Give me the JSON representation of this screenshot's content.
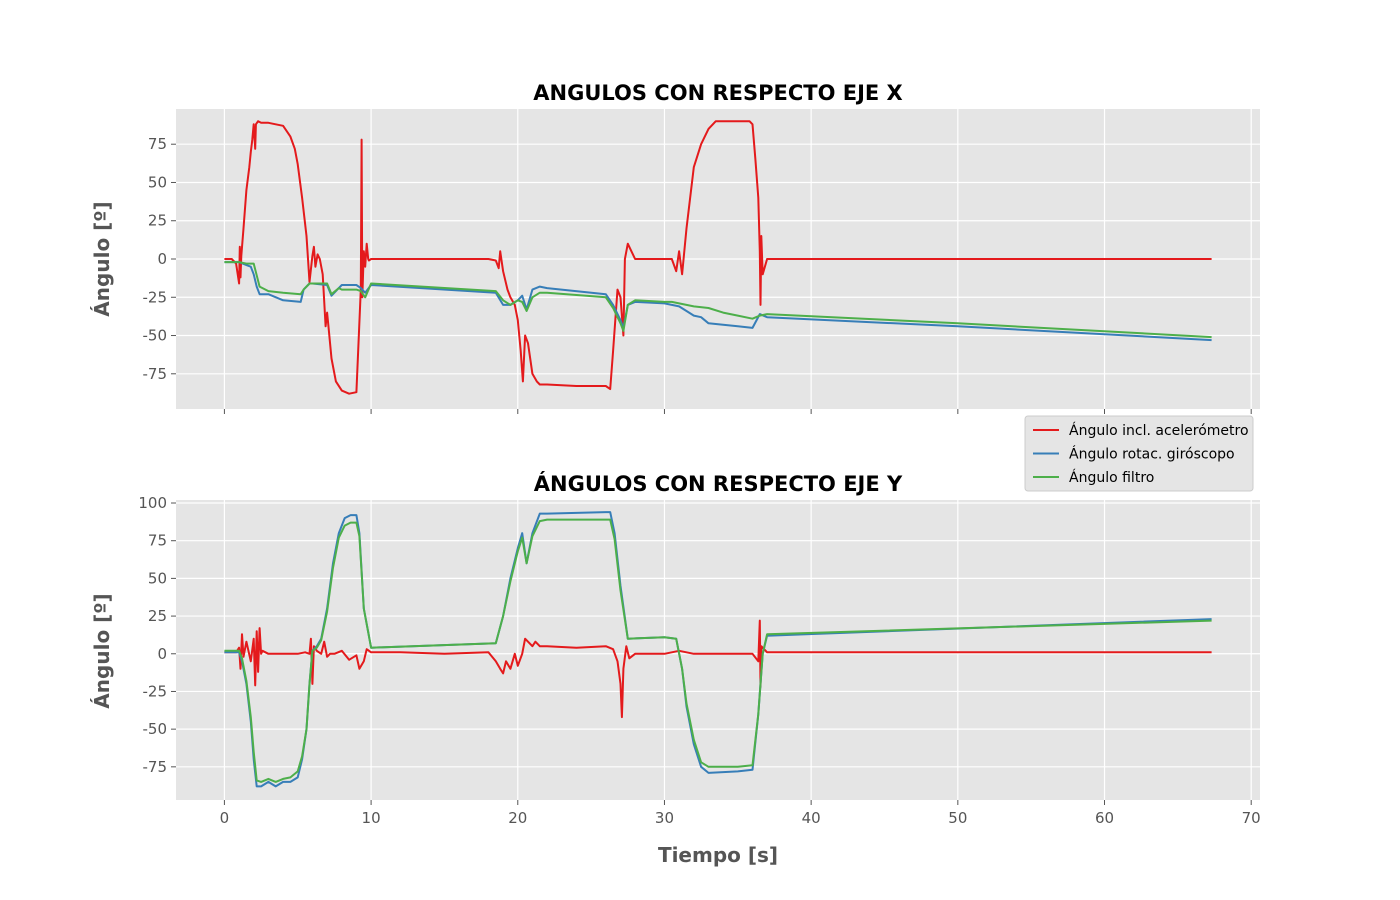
{
  "chart_data": [
    {
      "type": "line",
      "title": "ANGULOS CON RESPECTO EJE X",
      "xlabel": "",
      "ylabel": "Ángulo [º]",
      "xlim": [
        -3.3,
        70.6
      ],
      "ylim": [
        -98,
        98
      ],
      "xticks": [
        0,
        10,
        20,
        30,
        40,
        50,
        60,
        70
      ],
      "yticks": [
        -75,
        -50,
        -25,
        0,
        25,
        50,
        75
      ],
      "show_xtick_labels": false,
      "grid": true,
      "series": [
        {
          "name": "Ángulo incl. acelerómetro",
          "color": "#e41a1c",
          "x": [
            0,
            0.5,
            0.8,
            1.0,
            1.05,
            1.1,
            1.15,
            1.3,
            1.5,
            1.7,
            1.8,
            1.9,
            2.0,
            2.1,
            2.15,
            2.3,
            2.5,
            3.0,
            3.5,
            4.0,
            4.5,
            4.8,
            5.0,
            5.3,
            5.6,
            5.8,
            6.0,
            6.1,
            6.2,
            6.35,
            6.5,
            6.7,
            6.9,
            7.0,
            7.1,
            7.3,
            7.6,
            8.0,
            8.5,
            9.0,
            9.3,
            9.35,
            9.4,
            9.5,
            9.6,
            9.7,
            9.8,
            9.85,
            10.0,
            12.0,
            15.0,
            18.0,
            18.5,
            18.7,
            18.8,
            19.0,
            19.3,
            19.5,
            19.8,
            20.0,
            20.2,
            20.35,
            20.5,
            20.7,
            21.0,
            21.3,
            21.5,
            22.0,
            24.0,
            26.0,
            26.3,
            26.5,
            26.8,
            27.0,
            27.2,
            27.3,
            27.5,
            28.0,
            29.0,
            30.0,
            30.5,
            30.8,
            31.0,
            31.2,
            31.5,
            32.0,
            32.5,
            33.0,
            33.5,
            34.0,
            35.0,
            35.8,
            36.0,
            36.2,
            36.4,
            36.5,
            36.55,
            36.6,
            36.7,
            37.0,
            40.0,
            45.0,
            50.0,
            55.0,
            60.0,
            65.0,
            67.3
          ],
          "values": [
            0,
            0,
            -3,
            -16,
            8,
            -12,
            2,
            20,
            45,
            60,
            70,
            78,
            88,
            72,
            88,
            90,
            89,
            89,
            88,
            87,
            80,
            72,
            62,
            40,
            15,
            -15,
            2,
            8,
            -5,
            3,
            0,
            -10,
            -44,
            -35,
            -45,
            -65,
            -80,
            -86,
            -88,
            -87,
            -20,
            78,
            -25,
            5,
            -5,
            10,
            0,
            -1,
            0,
            0,
            0,
            0,
            -1,
            -6,
            5,
            -8,
            -20,
            -25,
            -30,
            -40,
            -60,
            -80,
            -50,
            -55,
            -75,
            -80,
            -82,
            -82,
            -83,
            -83,
            -85,
            -60,
            -20,
            -25,
            -50,
            0,
            10,
            0,
            0,
            0,
            0,
            -8,
            5,
            -10,
            20,
            60,
            75,
            85,
            90,
            90,
            90,
            90,
            88,
            65,
            40,
            5,
            -30,
            15,
            -10,
            0,
            0,
            0,
            0,
            0,
            0,
            0,
            0
          ]
        },
        {
          "name": "Ángulo rotac. giróscopo",
          "color": "#377eb8",
          "x": [
            0,
            1.0,
            1.5,
            1.8,
            2.0,
            2.2,
            2.4,
            3.0,
            4.0,
            5.2,
            5.4,
            5.8,
            6.0,
            7.0,
            7.3,
            7.8,
            8.0,
            9.0,
            9.3,
            9.6,
            10.0,
            18.5,
            19.0,
            19.5,
            20.0,
            20.3,
            20.6,
            21.0,
            21.5,
            22.0,
            26.0,
            26.5,
            27.0,
            27.2,
            27.5,
            28.0,
            30.0,
            30.5,
            31.0,
            31.5,
            32.0,
            32.5,
            33.0,
            34.0,
            35.0,
            36.0,
            36.5,
            37.0,
            50.0,
            67.3
          ],
          "values": [
            -2,
            -2,
            -4,
            -5,
            -10,
            -18,
            -23,
            -23,
            -27,
            -28,
            -20,
            -16,
            -16,
            -17,
            -24,
            -19,
            -17,
            -17,
            -19,
            -22,
            -17,
            -22,
            -30,
            -30,
            -27,
            -24,
            -33,
            -20,
            -18,
            -19,
            -23,
            -30,
            -40,
            -45,
            -30,
            -28,
            -29,
            -30,
            -31,
            -34,
            -37,
            -38,
            -42,
            -43,
            -44,
            -45,
            -36,
            -38,
            -44,
            -53
          ]
        },
        {
          "name": "Ángulo filtro",
          "color": "#4daf4a",
          "x": [
            0,
            1.0,
            1.5,
            2.0,
            2.4,
            3.0,
            4.0,
            5.2,
            5.4,
            5.8,
            6.0,
            7.0,
            7.3,
            7.8,
            8.0,
            9.0,
            9.3,
            9.6,
            10.0,
            18.5,
            19.0,
            19.5,
            20.0,
            20.3,
            20.6,
            21.0,
            21.5,
            22.0,
            26.0,
            26.5,
            27.0,
            27.2,
            27.5,
            28.0,
            30.0,
            30.5,
            31.0,
            31.5,
            32.0,
            33.0,
            34.0,
            35.0,
            36.0,
            36.5,
            37.0,
            50.0,
            67.3
          ],
          "values": [
            -2,
            -2,
            -3,
            -3,
            -18,
            -21,
            -22,
            -23,
            -20,
            -16,
            -16,
            -16,
            -23,
            -19,
            -20,
            -20,
            -21,
            -25,
            -16,
            -21,
            -27,
            -30,
            -27,
            -28,
            -34,
            -25,
            -22,
            -22,
            -25,
            -32,
            -42,
            -47,
            -30,
            -27,
            -28,
            -28,
            -29,
            -30,
            -31,
            -32,
            -35,
            -37,
            -39,
            -37,
            -36,
            -42,
            -51
          ]
        }
      ]
    },
    {
      "type": "line",
      "title": "ÁNGULOS CON RESPECTO EJE Y",
      "xlabel": "Tiempo [s]",
      "ylabel": "Ángulo [º]",
      "xlim": [
        -3.3,
        70.6
      ],
      "ylim": [
        -97,
        102
      ],
      "xticks": [
        0,
        10,
        20,
        30,
        40,
        50,
        60,
        70
      ],
      "yticks": [
        -75,
        -50,
        -25,
        0,
        25,
        50,
        75,
        100
      ],
      "show_xtick_labels": true,
      "grid": true,
      "legend": "top-right",
      "series": [
        {
          "name": "Ángulo incl. acelerómetro",
          "color": "#e41a1c",
          "x": [
            0,
            0.8,
            1.0,
            1.1,
            1.2,
            1.3,
            1.5,
            1.8,
            2.0,
            2.1,
            2.2,
            2.3,
            2.4,
            2.5,
            2.6,
            3.0,
            4.0,
            5.0,
            5.5,
            5.8,
            5.9,
            6.0,
            6.1,
            6.3,
            6.6,
            6.8,
            7.0,
            7.2,
            7.5,
            8.0,
            8.5,
            9.0,
            9.2,
            9.5,
            9.7,
            10.0,
            12.0,
            15.0,
            18.0,
            18.5,
            18.8,
            19.0,
            19.2,
            19.5,
            19.8,
            20.0,
            20.3,
            20.5,
            21.0,
            21.2,
            21.5,
            22.0,
            24.0,
            26.0,
            26.5,
            26.8,
            27.0,
            27.1,
            27.2,
            27.4,
            27.6,
            28.0,
            30.0,
            31.0,
            32.0,
            35.0,
            36.0,
            36.4,
            36.5,
            36.55,
            36.6,
            37.0,
            40.0,
            50.0,
            60.0,
            67.3
          ],
          "values": [
            1,
            1,
            4,
            -10,
            13,
            -2,
            8,
            -5,
            10,
            -21,
            15,
            -12,
            17,
            0,
            2,
            0,
            0,
            0,
            1,
            0,
            10,
            -20,
            5,
            2,
            0,
            8,
            -2,
            0,
            0,
            2,
            -4,
            -1,
            -10,
            -5,
            3,
            1,
            1,
            0,
            1,
            -5,
            -10,
            -13,
            -5,
            -10,
            0,
            -8,
            0,
            10,
            5,
            8,
            5,
            5,
            4,
            5,
            3,
            -5,
            -20,
            -42,
            -10,
            5,
            -3,
            0,
            0,
            2,
            0,
            0,
            0,
            -5,
            22,
            -22,
            5,
            1,
            1,
            1,
            1,
            1
          ]
        },
        {
          "name": "Ángulo rotac. giróscopo",
          "color": "#377eb8",
          "x": [
            0,
            1.0,
            1.2,
            1.5,
            1.8,
            2.0,
            2.2,
            2.5,
            3.0,
            3.5,
            4.0,
            4.5,
            5.0,
            5.3,
            5.6,
            5.8,
            6.0,
            6.3,
            6.6,
            7.0,
            7.4,
            7.8,
            8.2,
            8.6,
            9.0,
            9.2,
            9.5,
            10.0,
            18.5,
            19.0,
            19.5,
            20.0,
            20.3,
            20.6,
            21.0,
            21.5,
            22.0,
            26.0,
            26.3,
            26.6,
            27.0,
            27.5,
            30.0,
            30.8,
            31.2,
            31.5,
            32.0,
            32.5,
            33.0,
            35.0,
            36.0,
            36.4,
            36.7,
            37.0,
            67.3
          ],
          "values": [
            1,
            1,
            -5,
            -20,
            -45,
            -70,
            -88,
            -88,
            -85,
            -88,
            -85,
            -85,
            -82,
            -70,
            -50,
            -20,
            2,
            5,
            10,
            30,
            60,
            80,
            90,
            92,
            92,
            80,
            30,
            4,
            7,
            25,
            50,
            70,
            80,
            60,
            80,
            93,
            93,
            94,
            94,
            80,
            45,
            10,
            11,
            10,
            -10,
            -35,
            -60,
            -75,
            -79,
            -78,
            -77,
            -40,
            0,
            12,
            23
          ]
        },
        {
          "name": "Ángulo filtro",
          "color": "#4daf4a",
          "x": [
            0,
            1.0,
            1.2,
            1.5,
            1.8,
            2.0,
            2.2,
            2.5,
            3.0,
            3.5,
            4.0,
            4.5,
            5.0,
            5.3,
            5.6,
            5.8,
            6.0,
            6.3,
            6.6,
            7.0,
            7.4,
            7.8,
            8.2,
            8.6,
            9.0,
            9.2,
            9.5,
            10.0,
            18.5,
            19.0,
            19.5,
            20.0,
            20.3,
            20.6,
            21.0,
            21.5,
            22.0,
            26.0,
            26.3,
            26.6,
            27.0,
            27.5,
            30.0,
            30.8,
            31.2,
            31.5,
            32.0,
            32.5,
            33.0,
            35.0,
            36.0,
            36.4,
            36.7,
            37.0,
            67.3
          ],
          "values": [
            2,
            2,
            -3,
            -18,
            -42,
            -65,
            -84,
            -85,
            -83,
            -85,
            -83,
            -82,
            -78,
            -68,
            -50,
            -20,
            2,
            4,
            9,
            28,
            57,
            77,
            85,
            87,
            87,
            78,
            30,
            4,
            7,
            25,
            48,
            68,
            77,
            60,
            78,
            88,
            89,
            89,
            89,
            76,
            42,
            10,
            11,
            10,
            -10,
            -33,
            -57,
            -72,
            -75,
            -75,
            -74,
            -40,
            0,
            13,
            22
          ]
        }
      ]
    }
  ]
}
